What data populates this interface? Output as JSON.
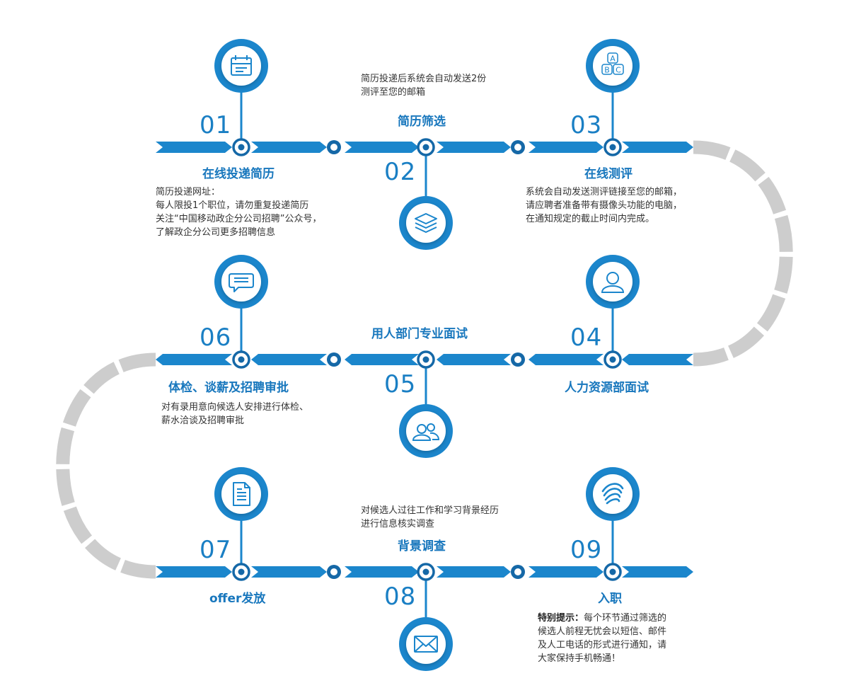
{
  "colors": {
    "primary": "#1b86cc",
    "dark": "#1568a7",
    "gray": "#cdcdcd",
    "text": "#333333"
  },
  "steps": [
    {
      "num": "01",
      "title": "在线投递简历",
      "icon": "calendar-icon",
      "desc": [
        "简历投递网址：",
        "每人限投1个职位，请勿重复投递简历",
        "关注“中国移动政企分公司招聘”公众号，",
        "了解政企分公司更多招聘信息"
      ]
    },
    {
      "num": "02",
      "title": "简历筛选",
      "icon": "layers-icon",
      "desc": [
        "简历投递后系统会自动发送2份",
        "测评至您的邮箱"
      ]
    },
    {
      "num": "03",
      "title": "在线测评",
      "icon": "abc-icon",
      "icon_letters": [
        "A",
        "B",
        "C"
      ],
      "desc": [
        "系统会自动发送测评链接至您的邮箱，",
        "请应聘者准备带有摄像头功能的电脑，",
        "在通知规定的截止时间内完成。"
      ]
    },
    {
      "num": "04",
      "title": "人力资源部面试",
      "icon": "person-icon",
      "desc": []
    },
    {
      "num": "05",
      "title": "用人部门专业面试",
      "icon": "group-icon",
      "desc": []
    },
    {
      "num": "06",
      "title": "体检、谈薪及招聘审批",
      "icon": "chat-icon",
      "desc": [
        "对有录用意向候选人安排进行体检、",
        "薪水洽谈及招聘审批"
      ]
    },
    {
      "num": "07",
      "title": "offer发放",
      "icon": "document-icon",
      "desc": []
    },
    {
      "num": "08",
      "title": "背景调查",
      "icon": "envelope-icon",
      "desc": [
        "对候选人过往工作和学习背景经历",
        "进行信息核实调查"
      ]
    },
    {
      "num": "09",
      "title": "入职",
      "icon": "china-mobile-logo-icon",
      "desc": []
    }
  ],
  "note": {
    "label": "特别提示：",
    "lines": [
      "每个环节通过筛选的",
      "候选人前程无忧会以短信、邮件",
      "及人工电话的形式进行通知，请",
      "大家保持手机畅通！"
    ]
  }
}
